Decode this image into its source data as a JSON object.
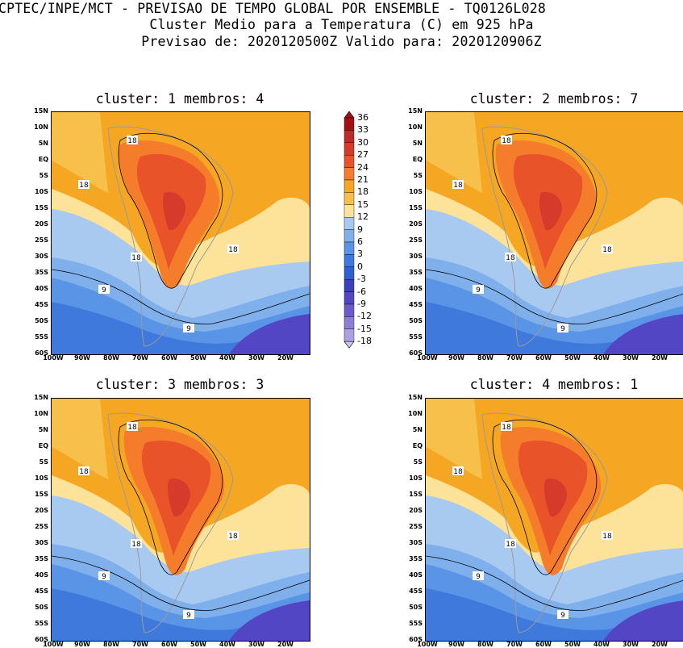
{
  "header": {
    "line1": "CPTEC/INPE/MCT - PREVISAO DE TEMPO GLOBAL POR ENSEMBLE - TQ0126L028",
    "line2": "Cluster Medio para a Temperatura (C) em 925 hPa",
    "line3": "Previsao de: 2020120500Z   Valido para: 2020120906Z"
  },
  "lat_labels": [
    "15N",
    "10N",
    "5N",
    "EQ",
    "5S",
    "10S",
    "15S",
    "20S",
    "25S",
    "30S",
    "35S",
    "40S",
    "45S",
    "50S",
    "55S",
    "60S"
  ],
  "lon_labels": [
    "100W",
    "90W",
    "80W",
    "70W",
    "60W",
    "50W",
    "40W",
    "30W",
    "20W"
  ],
  "panels": [
    {
      "title": "cluster: 1   membros: 4"
    },
    {
      "title": "cluster: 2   membros: 7"
    },
    {
      "title": "cluster: 3   membros: 3"
    },
    {
      "title": "cluster: 4   membros: 1"
    }
  ],
  "contour_labels": [
    "18",
    "18",
    "18",
    "18",
    "9",
    "9"
  ],
  "colorbar": {
    "levels": [
      "36",
      "33",
      "30",
      "27",
      "24",
      "21",
      "18",
      "15",
      "12",
      "9",
      "6",
      "3",
      "0",
      "-3",
      "-6",
      "-9",
      "-12",
      "-15",
      "-18"
    ],
    "colors": [
      "#a50f15",
      "#c0282b",
      "#d63a2a",
      "#e8532a",
      "#f57c2a",
      "#f5a623",
      "#f7c04a",
      "#fde39a",
      "#a8c9f0",
      "#7fb0ec",
      "#5a94e6",
      "#3f79dc",
      "#2f5fd0",
      "#3a3fbf",
      "#5246c4",
      "#6c5ccb",
      "#8c7dd6",
      "#ad9fe2",
      "#cfc6ef"
    ]
  }
}
